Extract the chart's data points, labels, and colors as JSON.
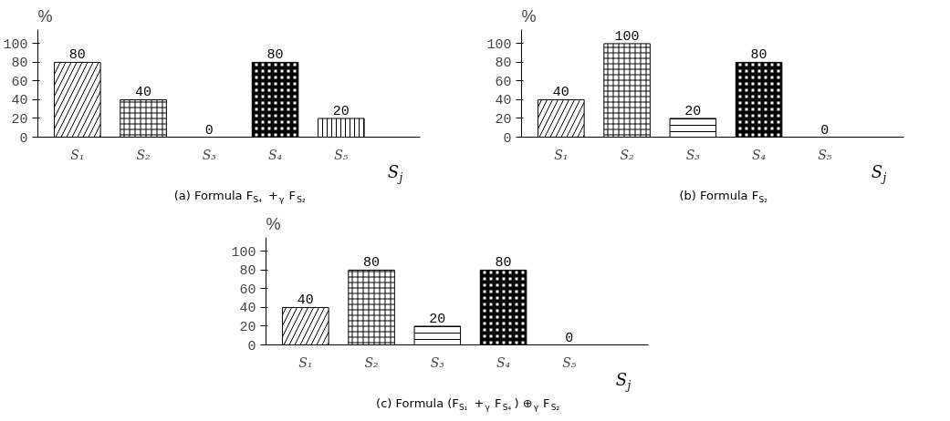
{
  "chart_data": [
    {
      "type": "bar",
      "title": "%",
      "subtitle": "(a) Formula F$_{S₄}$ +$_{γ}$ F$_{S₂}$",
      "xlabel": "S$_{j}$",
      "categories": [
        "S₁",
        "S₂",
        "S₃",
        "S₄",
        "S₅"
      ],
      "values": [
        80,
        40,
        0,
        80,
        20
      ],
      "colors": [
        "#000000",
        "#000000",
        "#000000",
        "#000000",
        "#000000"
      ],
      "ylim": [
        0,
        115
      ],
      "yticks": [
        0,
        20,
        40,
        60,
        80,
        100
      ],
      "data_labels": true
    },
    {
      "type": "bar",
      "title": "%",
      "subtitle": "(b) Formula F$_{S₂}$",
      "xlabel": "S$_{j}$",
      "categories": [
        "S₁",
        "S₂",
        "S₃",
        "S₄",
        "S₅"
      ],
      "values": [
        40,
        100,
        20,
        80,
        0
      ],
      "colors": [
        "#000000",
        "#000000",
        "#000000",
        "#000000",
        "#000000"
      ],
      "ylim": [
        0,
        115
      ],
      "yticks": [
        0,
        20,
        40,
        60,
        80,
        100
      ],
      "data_labels": true
    },
    {
      "type": "bar",
      "title": "%",
      "subtitle": "(c) Formula (F$_{S₁}$ +$_{γ}$ F$_{S₄}$) ⊕$_{γ}$ F$_{S₂}$",
      "xlabel": "S$_{j}$",
      "categories": [
        "S₁",
        "S₂",
        "S₃",
        "S₄",
        "S₅"
      ],
      "values": [
        40,
        80,
        20,
        80,
        0
      ],
      "colors": [
        "#000000",
        "#000000",
        "#000000",
        "#000000",
        "#000000"
      ],
      "ylim": [
        0,
        115
      ],
      "yticks": [
        0,
        20,
        40,
        60,
        80,
        100
      ],
      "data_labels": true
    }
  ]
}
